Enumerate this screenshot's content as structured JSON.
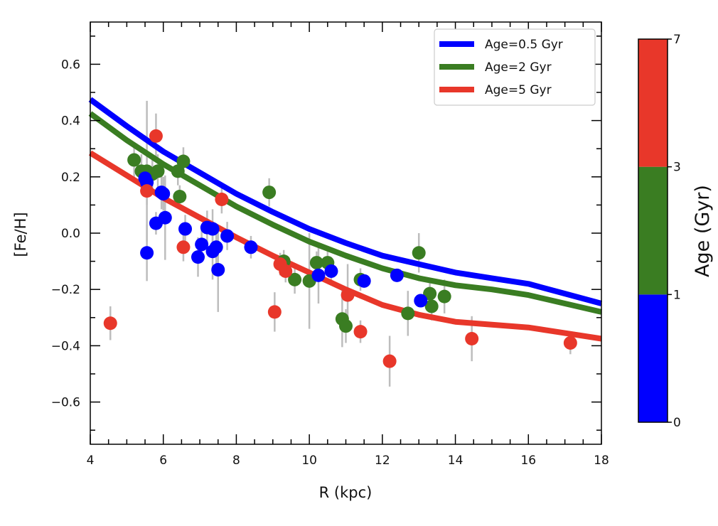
{
  "chart_data": {
    "type": "scatter",
    "xlabel": "R (kpc)",
    "ylabel": "[Fe/H]",
    "xlim": [
      4,
      18
    ],
    "ylim": [
      -0.75,
      0.75
    ],
    "x_ticks": [
      "4",
      "6",
      "8",
      "10",
      "12",
      "14",
      "16",
      "18"
    ],
    "y_ticks": [
      "−0.6",
      "−0.4",
      "−0.2",
      "0.0",
      "0.2",
      "0.4",
      "0.6"
    ],
    "lines": [
      {
        "name": "Age=0.5 Gyr",
        "color": "#0000ff",
        "x": [
          4,
          5,
          6,
          7,
          8,
          9,
          10,
          11,
          12,
          13,
          14,
          15,
          16,
          17,
          18
        ],
        "y": [
          0.475,
          0.38,
          0.29,
          0.215,
          0.14,
          0.075,
          0.015,
          -0.035,
          -0.08,
          -0.11,
          -0.14,
          -0.16,
          -0.18,
          -0.215,
          -0.25
        ]
      },
      {
        "name": "Age=2 Gyr",
        "color": "#3a7d22",
        "x": [
          4,
          5,
          6,
          7,
          8,
          9,
          10,
          11,
          12,
          13,
          14,
          15,
          16,
          17,
          18
        ],
        "y": [
          0.425,
          0.33,
          0.245,
          0.17,
          0.095,
          0.03,
          -0.03,
          -0.08,
          -0.125,
          -0.16,
          -0.185,
          -0.2,
          -0.22,
          -0.25,
          -0.28
        ]
      },
      {
        "name": "Age=5 Gyr",
        "color": "#e8372a",
        "x": [
          4,
          5,
          6,
          7,
          8,
          9,
          10,
          11,
          12,
          13,
          14,
          15,
          16,
          17,
          18
        ],
        "y": [
          0.285,
          0.205,
          0.125,
          0.055,
          -0.015,
          -0.08,
          -0.14,
          -0.2,
          -0.255,
          -0.29,
          -0.315,
          -0.325,
          -0.335,
          -0.355,
          -0.375
        ]
      }
    ],
    "series": [
      {
        "name": "blue",
        "color": "#0000ff",
        "points": [
          {
            "x": 5.5,
            "y": 0.195,
            "err": 0.0
          },
          {
            "x": 5.55,
            "y": 0.18,
            "err": 0.0
          },
          {
            "x": 5.55,
            "y": -0.07,
            "err": 0.1
          },
          {
            "x": 5.8,
            "y": 0.035,
            "err": 0.04
          },
          {
            "x": 5.95,
            "y": 0.145,
            "err": 0.06
          },
          {
            "x": 6.0,
            "y": 0.14,
            "err": 0.06
          },
          {
            "x": 6.05,
            "y": 0.055,
            "err": 0.15
          },
          {
            "x": 6.6,
            "y": 0.015,
            "err": 0.05
          },
          {
            "x": 6.95,
            "y": -0.085,
            "err": 0.07
          },
          {
            "x": 7.05,
            "y": -0.04,
            "err": 0.06
          },
          {
            "x": 7.2,
            "y": 0.02,
            "err": 0.06
          },
          {
            "x": 7.35,
            "y": 0.015,
            "err": 0.07
          },
          {
            "x": 7.35,
            "y": -0.065,
            "err": 0.1
          },
          {
            "x": 7.45,
            "y": -0.05,
            "err": 0.06
          },
          {
            "x": 7.5,
            "y": -0.13,
            "err": 0.15
          },
          {
            "x": 7.75,
            "y": -0.01,
            "err": 0.05
          },
          {
            "x": 8.4,
            "y": -0.05,
            "err": 0.04
          },
          {
            "x": 10.25,
            "y": -0.15,
            "err": 0.1
          },
          {
            "x": 10.6,
            "y": -0.135,
            "err": 0.04
          },
          {
            "x": 11.5,
            "y": -0.17,
            "err": 0.02
          },
          {
            "x": 12.4,
            "y": -0.15,
            "err": 0.0
          },
          {
            "x": 13.05,
            "y": -0.24,
            "err": 0.0
          }
        ]
      },
      {
        "name": "green",
        "color": "#3a7d22",
        "points": [
          {
            "x": 5.2,
            "y": 0.26,
            "err": 0.06
          },
          {
            "x": 5.4,
            "y": 0.22,
            "err": 0.06
          },
          {
            "x": 5.55,
            "y": 0.22,
            "err": 0.25
          },
          {
            "x": 5.7,
            "y": 0.21,
            "err": 0.05
          },
          {
            "x": 5.85,
            "y": 0.22,
            "err": 0.06
          },
          {
            "x": 6.4,
            "y": 0.22,
            "err": 0.05
          },
          {
            "x": 6.45,
            "y": 0.13,
            "err": 0.04
          },
          {
            "x": 6.55,
            "y": 0.255,
            "err": 0.05
          },
          {
            "x": 8.9,
            "y": 0.145,
            "err": 0.05
          },
          {
            "x": 9.3,
            "y": -0.1,
            "err": 0.04
          },
          {
            "x": 9.6,
            "y": -0.165,
            "err": 0.05
          },
          {
            "x": 10.0,
            "y": -0.17,
            "err": 0.17
          },
          {
            "x": 10.2,
            "y": -0.105,
            "err": 0.04
          },
          {
            "x": 10.5,
            "y": -0.105,
            "err": 0.04
          },
          {
            "x": 10.9,
            "y": -0.305,
            "err": 0.1
          },
          {
            "x": 11.0,
            "y": -0.33,
            "err": 0.06
          },
          {
            "x": 11.4,
            "y": -0.165,
            "err": 0.04
          },
          {
            "x": 12.7,
            "y": -0.285,
            "err": 0.08
          },
          {
            "x": 13.0,
            "y": -0.07,
            "err": 0.07
          },
          {
            "x": 13.3,
            "y": -0.215,
            "err": 0.05
          },
          {
            "x": 13.35,
            "y": -0.26,
            "err": 0.05
          },
          {
            "x": 13.7,
            "y": -0.225,
            "err": 0.06
          }
        ]
      },
      {
        "name": "red",
        "color": "#e8372a",
        "points": [
          {
            "x": 4.55,
            "y": -0.32,
            "err": 0.06
          },
          {
            "x": 5.55,
            "y": 0.15,
            "err": 0.05
          },
          {
            "x": 5.8,
            "y": 0.345,
            "err": 0.08
          },
          {
            "x": 6.55,
            "y": -0.05,
            "err": 0.05
          },
          {
            "x": 7.6,
            "y": 0.12,
            "err": 0.05
          },
          {
            "x": 9.05,
            "y": -0.28,
            "err": 0.07
          },
          {
            "x": 9.2,
            "y": -0.11,
            "err": 0.04
          },
          {
            "x": 9.35,
            "y": -0.135,
            "err": 0.04
          },
          {
            "x": 11.05,
            "y": -0.22,
            "err": 0.11
          },
          {
            "x": 11.4,
            "y": -0.35,
            "err": 0.04
          },
          {
            "x": 12.2,
            "y": -0.455,
            "err": 0.09
          },
          {
            "x": 14.45,
            "y": -0.375,
            "err": 0.08
          },
          {
            "x": 17.15,
            "y": -0.39,
            "err": 0.04
          }
        ]
      }
    ],
    "legend": {
      "position": "top-right",
      "entries": [
        "Age=0.5 Gyr",
        "Age=2 Gyr",
        "Age=5 Gyr"
      ]
    },
    "colorbar": {
      "label": "Age (Gyr)",
      "ticks": [
        "0",
        "1",
        "3",
        "7"
      ],
      "segments": [
        {
          "from": 0,
          "to": 1,
          "color": "#0000ff"
        },
        {
          "from": 1,
          "to": 3,
          "color": "#3a7d22"
        },
        {
          "from": 3,
          "to": 7,
          "color": "#e8372a"
        }
      ]
    },
    "errorbar_color": "#bdbdbd",
    "grid": false
  }
}
